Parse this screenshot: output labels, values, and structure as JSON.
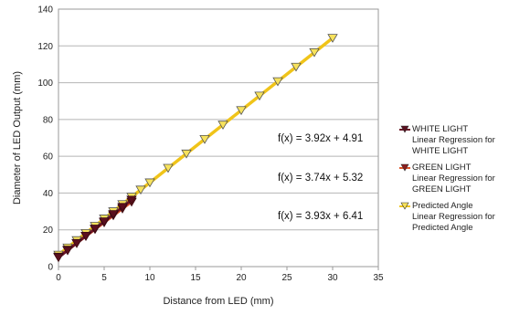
{
  "chart_data": {
    "type": "scatter",
    "title": "",
    "xlabel": "Distance from LED (mm)",
    "ylabel": "Diameter of LED Output (mm)",
    "xlim": [
      0,
      35
    ],
    "ylim": [
      0,
      140
    ],
    "xticks": [
      0,
      5,
      10,
      15,
      20,
      25,
      30,
      35
    ],
    "yticks": [
      0,
      20,
      40,
      60,
      80,
      100,
      120,
      140
    ],
    "grid": "horizontal",
    "legend_position": "right",
    "series": [
      {
        "name": "WHITE LIGHT",
        "regression_label": "Linear Regression for\nWHITE LIGHT",
        "equation": "f(x) = 3.92x + 4.91",
        "slope": 3.92,
        "intercept": 4.91,
        "color": "#5a0f1e",
        "line_color": "#6b1426",
        "marker": "triangle-down",
        "x": [
          0,
          1,
          2,
          3,
          4,
          5,
          6,
          7,
          8
        ],
        "y": [
          5,
          8.8,
          12.7,
          16.7,
          20.6,
          24.5,
          28.5,
          32.4,
          36.3
        ]
      },
      {
        "name": "GREEN LIGHT",
        "regression_label": "Linear Regression for\nGREEN LIGHT",
        "equation": "f(x) = 3.74x + 5.32",
        "slope": 3.74,
        "intercept": 5.32,
        "color": "#8b1e1e",
        "line_color": "#e0562a",
        "marker": "triangle-down",
        "x": [
          0,
          1,
          2,
          3,
          4,
          5,
          6,
          7,
          8
        ],
        "y": [
          5.3,
          9.1,
          12.8,
          16.5,
          20.3,
          24,
          27.8,
          31.5,
          35.2
        ]
      },
      {
        "name": "Predicted Angle",
        "regression_label": "Linear Regression for\nPredicted Angle",
        "equation": "f(x) = 3.93x + 6.41",
        "slope": 3.93,
        "intercept": 6.41,
        "color": "#f7e25c",
        "line_color": "#f0c419",
        "marker": "triangle-down",
        "x": [
          0,
          1,
          2,
          3,
          4,
          5,
          6,
          7,
          8,
          9,
          10,
          12,
          14,
          16,
          18,
          20,
          22,
          24,
          26,
          28,
          30
        ],
        "y": [
          6.4,
          10.3,
          14.3,
          18.2,
          22.1,
          26.1,
          30,
          33.9,
          37.9,
          41.8,
          45.7,
          53.6,
          61.4,
          69.3,
          77.1,
          85,
          92.9,
          100.7,
          108.6,
          116.5,
          124.3
        ]
      }
    ]
  }
}
